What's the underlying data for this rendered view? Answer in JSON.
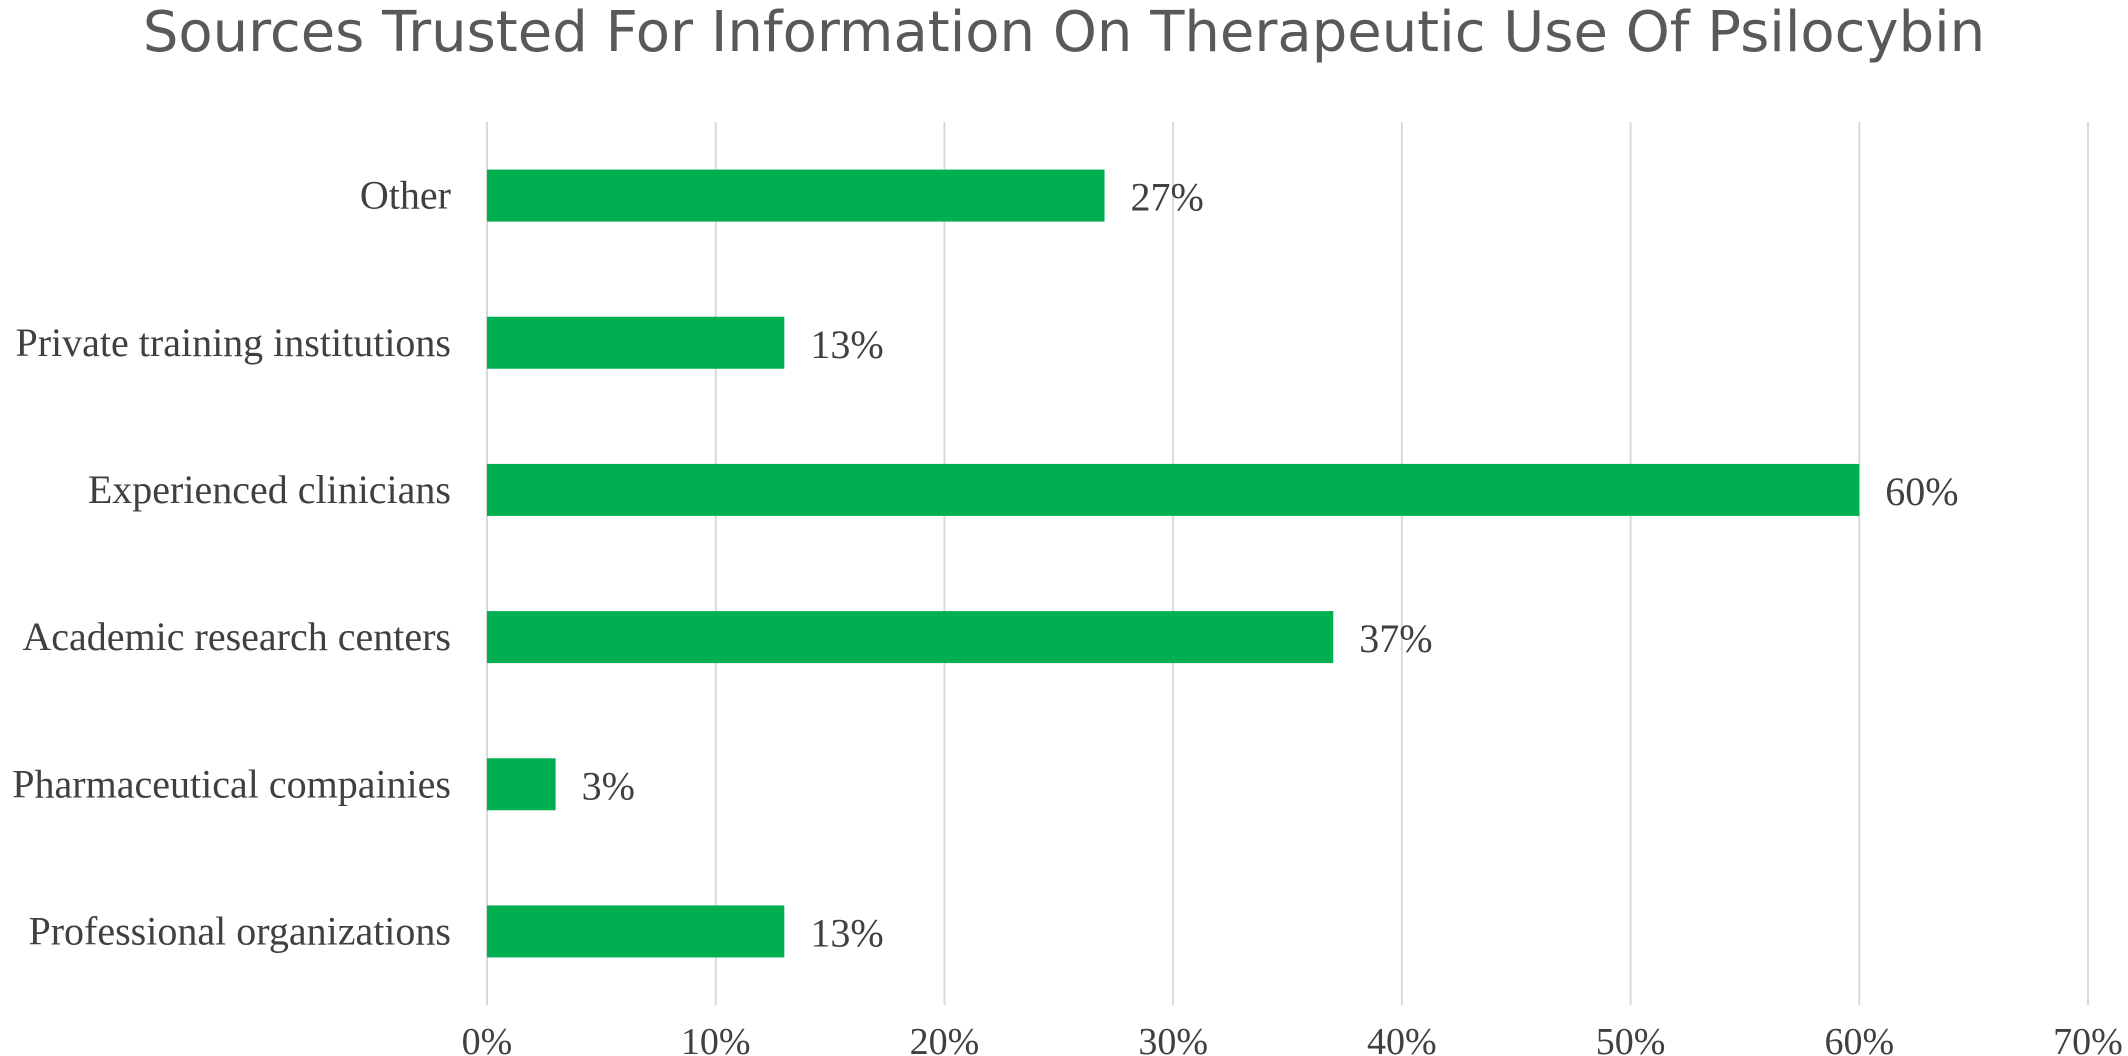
{
  "chart_data": {
    "type": "bar",
    "orientation": "horizontal",
    "title": "Sources Trusted For Information On Therapeutic Use Of Psilocybin",
    "categories": [
      "Other",
      "Private training institutions",
      "Experienced clinicians",
      "Academic research centers",
      "Pharmaceutical compainies",
      "Professional organizations"
    ],
    "values": [
      27,
      13,
      60,
      37,
      3,
      13
    ],
    "data_labels": [
      "27%",
      "13%",
      "60%",
      "37%",
      "3%",
      "13%"
    ],
    "xlim": [
      0,
      70
    ],
    "x_ticks": [
      "0%",
      "10%",
      "20%",
      "30%",
      "40%",
      "50%",
      "60%",
      "70%"
    ],
    "xlabel": "",
    "ylabel": "",
    "grid": "vertical",
    "legend": "none",
    "bar_color": "#00B050",
    "grid_color": "#D9D9D9"
  }
}
